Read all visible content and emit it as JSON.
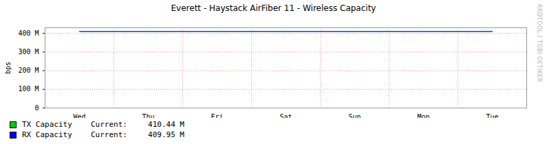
{
  "chart_data": {
    "type": "line",
    "title": "Everett - Haystack AirFiber 11 - Wireless Capacity",
    "ylabel": "bps",
    "watermark": "RRDTOOL / TOBI OETIKER",
    "current_label": "Current:",
    "categories": [
      "Wed",
      "Thu",
      "Fri",
      "Sat",
      "Sun",
      "Mon",
      "Tue"
    ],
    "series": [
      {
        "name": "TX Capacity",
        "color": "#00cc00",
        "current": "410.44 M",
        "values": [
          410440000,
          410440000,
          410440000,
          410440000,
          410440000,
          410440000,
          410440000
        ]
      },
      {
        "name": "RX Capacity",
        "color": "#0000ff",
        "current": "409.95 M",
        "values": [
          409950000,
          409950000,
          409950000,
          409950000,
          409950000,
          409950000,
          409950000
        ]
      }
    ],
    "ylim": [
      0,
      430000000
    ],
    "yticks": [
      0,
      {
        "value": 100000000,
        "label": "100 M"
      },
      {
        "value": 200000000,
        "label": "200 M"
      },
      {
        "value": 300000000,
        "label": "300 M"
      },
      {
        "value": 400000000,
        "label": "400 M"
      }
    ],
    "grid": true
  }
}
